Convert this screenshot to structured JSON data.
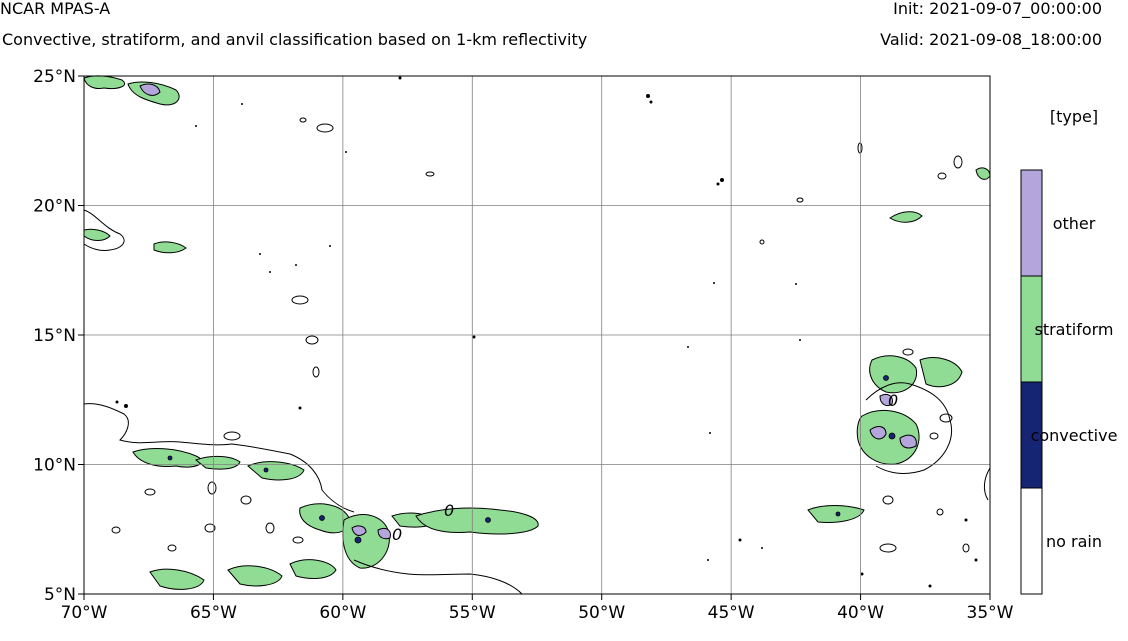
{
  "header": {
    "model": "NCAR MPAS-A",
    "description": "Convective, stratiform, and anvil classification based on 1-km reflectivity",
    "init": "Init: 2021-09-07_00:00:00",
    "valid": "Valid: 2021-09-08_18:00:00"
  },
  "map": {
    "lon_range": [
      -70,
      -35
    ],
    "lat_range": [
      5,
      25
    ],
    "lon_ticks": [
      {
        "value": -70,
        "label": "70°W"
      },
      {
        "value": -65,
        "label": "65°W"
      },
      {
        "value": -60,
        "label": "60°W"
      },
      {
        "value": -55,
        "label": "55°W"
      },
      {
        "value": -50,
        "label": "50°W"
      },
      {
        "value": -45,
        "label": "45°W"
      },
      {
        "value": -40,
        "label": "40°W"
      },
      {
        "value": -35,
        "label": "35°W"
      }
    ],
    "lat_ticks": [
      {
        "value": 25,
        "label": "25°N"
      },
      {
        "value": 20,
        "label": "20°N"
      },
      {
        "value": 15,
        "label": "15°N"
      },
      {
        "value": 10,
        "label": "10°N"
      },
      {
        "value": 5,
        "label": "5°N"
      }
    ],
    "gridlines": true,
    "contour_label": "0"
  },
  "legend": {
    "title": "[type]",
    "entries": [
      {
        "label": "other",
        "color": "#b4a6dc"
      },
      {
        "label": "stratiform",
        "color": "#90dc94"
      },
      {
        "label": "convective",
        "color": "#162474"
      },
      {
        "label": "no rain",
        "color": "#ffffff"
      }
    ]
  },
  "colors": {
    "other": "#b4a6dc",
    "stratiform": "#90dc94",
    "convective": "#162474",
    "outline": "#000000",
    "grid": "#808080"
  }
}
